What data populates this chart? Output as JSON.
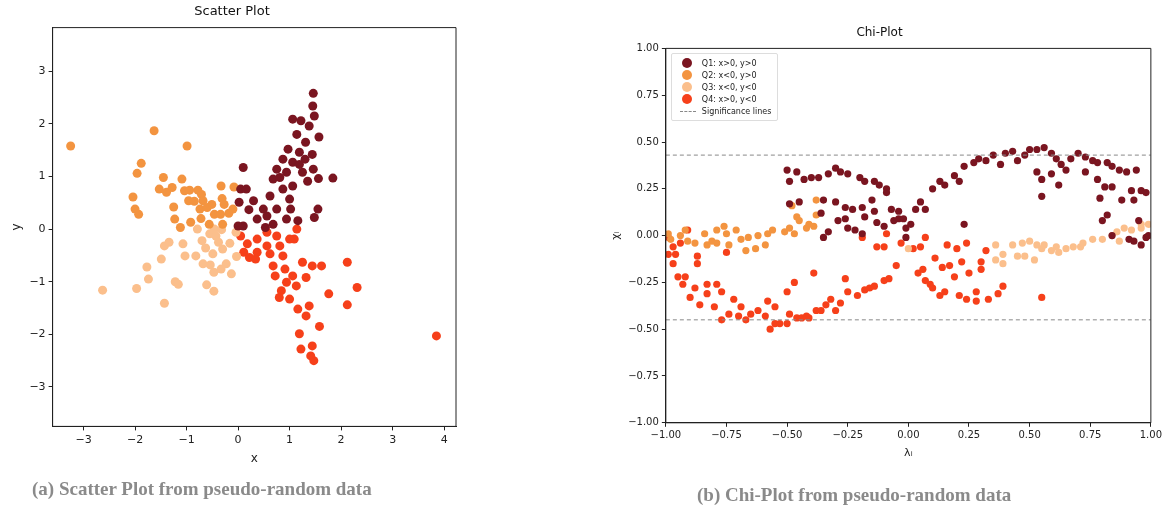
{
  "chart_data": [
    {
      "type": "scatter",
      "title": "Scatter Plot",
      "xlabel": "x",
      "ylabel": "y",
      "marker": "circle",
      "xlim": [
        -3.6,
        4.23
      ],
      "ylim": [
        -3.75,
        3.83
      ],
      "xticks": [
        {
          "value": -3,
          "label": "−3"
        },
        {
          "value": -2,
          "label": "−2"
        },
        {
          "value": -1,
          "label": "−1"
        },
        0,
        1,
        2,
        3,
        4
      ],
      "yticks": [
        {
          "value": -3,
          "label": "−3"
        },
        {
          "value": -2,
          "label": "−2"
        },
        {
          "value": -1,
          "label": "−1"
        },
        0,
        1,
        2,
        3
      ],
      "annotations": [
        "(a) Scatter Plot from pseudo-random data"
      ],
      "series": [
        {
          "color": "#7a1520",
          "x": [
            1.46,
            1.45,
            1.48,
            1.06,
            1.22,
            1.38,
            1.57,
            1.14,
            1.31,
            0.97,
            1.19,
            1.44,
            1.06,
            1.3,
            1.46,
            1.84,
            1.56,
            1.35,
            0.1,
            0.05,
            0.16,
            0.02,
            0.3,
            0.21,
            0.37,
            0.0,
            0.1,
            0.49,
            0.68,
            0.75,
            0.94,
            0.87,
            1.06,
            0.62,
            1.0,
            0.75,
            1.02,
            0.94,
            1.16,
            0.56,
            1.48,
            1.55,
            0.68,
            0.53,
            1.19,
            0.87,
            1.25,
            0.81
          ],
          "values": [
            2.58,
            2.34,
            2.15,
            2.09,
            2.06,
            1.96,
            1.75,
            1.8,
            1.65,
            1.52,
            1.46,
            1.42,
            1.27,
            1.33,
            1.14,
            0.97,
            0.96,
            0.91,
            1.17,
            0.76,
            0.76,
            0.51,
            0.54,
            0.37,
            0.19,
            0.06,
            0.06,
            0.38,
            0.95,
            1.14,
            1.08,
            0.76,
            0.82,
            0.63,
            0.57,
            0.38,
            0.38,
            0.19,
            0.16,
            0.25,
            0.22,
            0.38,
            0.09,
            0.03,
            1.23,
            1.33,
            1.08,
            0.98
          ]
        },
        {
          "color": "#f39440",
          "x": [
            -3.25,
            -1.63,
            -0.99,
            -1.88,
            -1.96,
            -1.45,
            -1.09,
            -2.04,
            -2.0,
            -1.93,
            -1.53,
            -1.39,
            -1.28,
            -1.25,
            -1.23,
            -1.12,
            -1.04,
            -0.94,
            -0.96,
            -0.85,
            -0.78,
            -0.71,
            -0.68,
            -0.74,
            -0.72,
            -0.92,
            -0.6,
            -0.51,
            -0.46,
            -0.33,
            -0.31,
            -0.27,
            -0.34,
            -0.18,
            -0.08,
            -0.1,
            -0.3,
            -0.56
          ],
          "values": [
            1.58,
            1.87,
            1.58,
            1.25,
            1.06,
            0.98,
            0.95,
            0.61,
            0.38,
            0.28,
            0.76,
            0.7,
            0.79,
            0.42,
            0.19,
            0.03,
            0.73,
            0.74,
            0.54,
            0.53,
            0.74,
            0.66,
            0.54,
            0.38,
            0.2,
            0.13,
            0.41,
            0.47,
            0.28,
            0.82,
            0.58,
            0.47,
            0.28,
            0.3,
            0.8,
            0.38,
            0.09,
            0.09
          ]
        },
        {
          "color": "#fbbf8c",
          "x": [
            -2.63,
            -1.97,
            -1.43,
            -1.77,
            -1.74,
            -1.22,
            -1.16,
            -1.49,
            -1.43,
            -1.34,
            -1.07,
            -1.03,
            -0.82,
            -0.79,
            -0.7,
            -0.68,
            -0.61,
            -0.47,
            -0.47,
            -0.54,
            -0.49,
            -0.63,
            -0.55,
            -0.43,
            -0.38,
            -0.3,
            -0.23,
            -0.33,
            -0.13,
            -0.16,
            -0.03,
            -0.04,
            -0.46,
            -0.32
          ],
          "values": [
            -1.16,
            -1.13,
            -1.41,
            -0.72,
            -0.95,
            -1.0,
            -1.05,
            -0.57,
            -0.32,
            -0.25,
            -0.28,
            -0.51,
            -0.51,
            0.0,
            -0.22,
            -0.66,
            -1.06,
            -1.18,
            -0.82,
            -0.68,
            -0.47,
            -0.36,
            -0.09,
            -0.13,
            -0.25,
            -0.38,
            -0.66,
            -0.76,
            -0.85,
            -0.27,
            -0.52,
            -0.06,
            0.0,
            -0.01
          ]
        },
        {
          "color": "#f6401a",
          "x": [
            3.85,
            2.31,
            2.14,
            2.12,
            2.12,
            1.76,
            1.62,
            1.44,
            1.58,
            1.47,
            1.41,
            1.44,
            1.22,
            1.19,
            1.32,
            1.38,
            1.16,
            1.0,
            0.84,
            0.8,
            0.94,
            1.06,
            1.32,
            1.25,
            1.09,
            1.14,
            1.0,
            0.87,
            0.68,
            0.62,
            0.56,
            0.37,
            0.37,
            0.18,
            0.05,
            0.11,
            0.22,
            0.34,
            0.56,
            0.75,
            0.81,
            0.72,
            0.91,
            1.13
          ],
          "values": [
            -2.03,
            -1.11,
            null,
            -0.63,
            -1.44,
            -1.23,
            -0.7,
            -0.7,
            -1.85,
            -2.5,
            -2.41,
            -2.22,
            -2.28,
            -1.99,
            -1.65,
            -1.46,
            -1.52,
            -1.33,
            -1.17,
            -1.3,
            -1.01,
            -0.89,
            -0.92,
            -0.63,
            -0.19,
            0.0,
            -0.19,
            -0.51,
            -0.7,
            -0.47,
            -0.32,
            -0.44,
            -0.19,
            -0.28,
            -0.13,
            -0.44,
            -0.54,
            -0.57,
            -0.06,
            -0.13,
            -0.32,
            -0.89,
            -0.76,
            -1.08
          ]
        }
      ]
    },
    {
      "type": "scatter",
      "title": "Chi-Plot",
      "xlabel": "λᵢ",
      "ylabel": "χᵢ",
      "marker": "circle",
      "legend": "top left",
      "xlim": [
        -1,
        1
      ],
      "ylim": [
        -1,
        1
      ],
      "xticks": [
        {
          "value": -1,
          "label": "−1.00"
        },
        {
          "value": -0.75,
          "label": "−0.75"
        },
        {
          "value": -0.5,
          "label": "−0.50"
        },
        {
          "value": -0.25,
          "label": "−0.25"
        },
        {
          "value": 0,
          "label": "0.00"
        },
        {
          "value": 0.25,
          "label": "0.25"
        },
        {
          "value": 0.5,
          "label": "0.50"
        },
        {
          "value": 0.75,
          "label": "0.75"
        },
        {
          "value": 1,
          "label": "1.00"
        }
      ],
      "yticks": [
        {
          "value": -1,
          "label": "−1.00"
        },
        {
          "value": -0.75,
          "label": "−0.75"
        },
        {
          "value": -0.5,
          "label": "−0.50"
        },
        {
          "value": -0.25,
          "label": "−0.25"
        },
        {
          "value": 0,
          "label": "0.00"
        },
        {
          "value": 0.25,
          "label": "0.25"
        },
        {
          "value": 0.5,
          "label": "0.50"
        },
        {
          "value": 0.75,
          "label": "0.75"
        },
        {
          "value": 1,
          "label": "1.00"
        }
      ],
      "ref_lines": [
        {
          "axis": "y",
          "value": 0.43,
          "label": "Significance lines",
          "color": "#888888",
          "line_style": "dashed"
        },
        {
          "axis": "y",
          "value": -0.45,
          "label": null,
          "color": "#888888",
          "line_style": "dashed"
        }
      ],
      "annotations": [
        "(b) Chi-Plot from pseudo-random data"
      ],
      "series": [
        {
          "name": "Q1: x>0, y>0",
          "color": "#7a1520",
          "x": [
            -0.5,
            -0.49,
            -0.46,
            -0.43,
            -0.4,
            -0.37,
            -0.33,
            -0.3,
            -0.28,
            -0.25,
            -0.2,
            -0.18,
            -0.14,
            -0.12,
            -0.09,
            -0.09,
            -0.49,
            -0.45,
            -0.35,
            -0.3,
            -0.36,
            -0.29,
            -0.26,
            -0.26,
            -0.23,
            -0.25,
            -0.22,
            -0.35,
            -0.33,
            -0.19,
            -0.19,
            -0.18,
            -0.15,
            -0.14,
            -0.13,
            -0.1,
            -0.07,
            -0.06,
            -0.04,
            -0.04,
            -0.02,
            -0.01,
            0.01,
            -0.01,
            0.03,
            0.05,
            0.07,
            0.1,
            0.13,
            0.15,
            0.19,
            0.21,
            0.23,
            0.27,
            0.29,
            0.32,
            0.23,
            0.35,
            0.38,
            0.4,
            0.43,
            0.45,
            0.48,
            0.5,
            0.53,
            0.56,
            0.59,
            0.61,
            0.63,
            0.67,
            0.7,
            0.73,
            0.76,
            0.78,
            0.82,
            0.84,
            0.87,
            0.9,
            0.94,
            0.53,
            0.55,
            0.55,
            0.59,
            0.62,
            0.65,
            0.73,
            0.78,
            0.81,
            0.84,
            0.79,
            0.82,
            0.8,
            0.88,
            0.93,
            0.92,
            0.96,
            0.98,
            0.95,
            0.84,
            0.91,
            0.93,
            0.96,
            0.98,
            0.99
          ],
          "values": [
            0.35,
            0.29,
            0.34,
            0.3,
            0.31,
            0.31,
            0.33,
            0.36,
            0.34,
            0.33,
            0.31,
            0.29,
            0.29,
            0.27,
            0.25,
            0.23,
            0.17,
            0.18,
            0.19,
            0.18,
            0.12,
            0.08,
            0.09,
            0.15,
            0.14,
            0.04,
            0.03,
            -0.01,
            0.02,
            0.01,
            0.15,
            0.1,
            0.19,
            0.13,
            0.07,
            0.05,
            0.14,
            0.08,
            0.13,
            0.09,
            0.09,
            0.04,
            0.06,
            -0.01,
            0.14,
            0.18,
            0.14,
            0.25,
            0.29,
            0.27,
            0.32,
            0.29,
            0.37,
            0.39,
            0.41,
            0.4,
            0.06,
            0.43,
            0.38,
            0.44,
            0.45,
            0.4,
            0.43,
            0.46,
            0.46,
            0.47,
            0.44,
            0.41,
            0.38,
            0.41,
            0.44,
            0.42,
            0.4,
            0.39,
            0.39,
            0.37,
            0.35,
            0.34,
            0.35,
            0.34,
            0.3,
            0.21,
            0.33,
            0.27,
            0.35,
            0.34,
            0.3,
            0.26,
            0.26,
            0.2,
            0.11,
            0.08,
            0.19,
            0.19,
            0.24,
            0.24,
            0.23,
            0.08,
            0.0,
            -0.02,
            -0.03,
            -0.05,
            -0.01,
            0.0
          ]
        },
        {
          "name": "Q2: x<0, y>0",
          "color": "#f39440",
          "x": [
            -0.99,
            -0.98,
            -0.94,
            -0.92,
            -0.91,
            -0.88,
            -0.84,
            -0.83,
            -0.81,
            -0.79,
            -0.79,
            -0.76,
            -0.75,
            -0.74,
            -0.71,
            -0.69,
            -0.67,
            -0.66,
            -0.63,
            -0.62,
            -0.59,
            -0.58,
            -0.56,
            -0.51,
            -0.49,
            -0.47,
            -0.48,
            -0.46,
            -0.45,
            -0.42,
            -0.41,
            -0.39,
            -0.38,
            -0.38
          ],
          "values": [
            0.01,
            -0.02,
            0.0,
            0.03,
            -0.03,
            -0.04,
            0.01,
            -0.05,
            -0.03,
            -0.04,
            0.03,
            0.05,
            0.01,
            -0.05,
            0.03,
            -0.02,
            -0.08,
            -0.01,
            -0.07,
            0.0,
            -0.05,
            0.01,
            0.03,
            0.02,
            0.04,
            0.01,
            0.16,
            0.1,
            0.08,
            0.04,
            0.06,
            0.05,
            0.11,
            0.19
          ]
        },
        {
          "name": "Q3: x<0, y<0",
          "color": "#fbbf8c",
          "x": [
            0.0,
            0.36,
            0.36,
            0.39,
            0.39,
            0.43,
            0.45,
            0.47,
            0.48,
            0.5,
            0.52,
            0.53,
            0.55,
            0.56,
            0.59,
            0.61,
            0.62,
            0.65,
            0.68,
            0.71,
            0.72,
            0.76,
            0.8,
            0.84,
            0.86,
            0.87,
            0.89,
            0.92,
            0.96,
            0.96,
            0.99
          ],
          "values": [
            -0.07,
            -0.05,
            -0.13,
            -0.15,
            -0.1,
            -0.05,
            -0.11,
            -0.04,
            -0.11,
            -0.03,
            -0.13,
            -0.05,
            -0.07,
            -0.05,
            -0.08,
            -0.06,
            -0.09,
            -0.07,
            -0.06,
            -0.06,
            -0.04,
            -0.02,
            -0.02,
            0.0,
            0.02,
            -0.03,
            0.04,
            0.03,
            0.04,
            0.06,
            0.06
          ]
        },
        {
          "name": "Q4: x>0, y<0",
          "color": "#f6401a",
          "x": [
            -0.99,
            -0.99,
            -0.97,
            -0.96,
            -0.94,
            -0.97,
            -0.95,
            -0.93,
            -0.92,
            -0.91,
            -0.9,
            -0.88,
            -0.87,
            -0.87,
            -0.86,
            -0.83,
            -0.83,
            -0.8,
            -0.79,
            -0.77,
            -0.77,
            -0.75,
            -0.74,
            -0.72,
            -0.7,
            -0.69,
            -0.67,
            -0.65,
            -0.62,
            -0.59,
            -0.58,
            -0.57,
            -0.55,
            -0.55,
            -0.53,
            -0.5,
            -0.5,
            -0.49,
            -0.47,
            -0.46,
            -0.44,
            -0.42,
            -0.41,
            -0.39,
            -0.38,
            -0.36,
            -0.34,
            -0.32,
            -0.3,
            -0.28,
            -0.26,
            -0.25,
            -0.21,
            -0.19,
            -0.18,
            -0.16,
            -0.14,
            -0.13,
            -0.1,
            -0.09,
            -0.08,
            -0.1,
            -0.05,
            -0.03,
            0.02,
            0.05,
            0.07,
            0.04,
            0.06,
            0.07,
            0.09,
            0.1,
            0.11,
            0.13,
            0.14,
            0.15,
            0.16,
            0.17,
            0.19,
            0.2,
            0.21,
            0.22,
            0.24,
            0.24,
            0.25,
            0.28,
            0.28,
            0.3,
            0.32,
            0.33,
            0.37,
            0.39,
            0.55,
            0.3
          ],
          "values": [
            -0.01,
            -0.1,
            -0.06,
            -0.1,
            -0.04,
            -0.15,
            -0.22,
            -0.26,
            -0.22,
            0.03,
            -0.33,
            -0.28,
            -0.11,
            -0.15,
            -0.37,
            -0.26,
            -0.31,
            -0.38,
            -0.26,
            -0.45,
            -0.3,
            -0.09,
            -0.42,
            -0.34,
            -0.43,
            -0.38,
            -0.45,
            -0.42,
            -0.4,
            -0.43,
            -0.35,
            -0.5,
            -0.47,
            -0.38,
            -0.47,
            -0.3,
            -0.47,
            -0.42,
            -0.25,
            -0.44,
            -0.44,
            -0.43,
            -0.44,
            -0.2,
            -0.4,
            -0.4,
            -0.37,
            -0.34,
            -0.4,
            -0.36,
            -0.23,
            -0.3,
            -0.32,
            -0.01,
            -0.29,
            -0.28,
            -0.27,
            -0.06,
            -0.24,
            0.01,
            -0.23,
            -0.06,
            -0.16,
            -0.04,
            -0.07,
            -0.06,
            -0.01,
            -0.2,
            -0.18,
            -0.24,
            -0.26,
            -0.28,
            -0.12,
            -0.32,
            -0.17,
            -0.3,
            -0.05,
            -0.16,
            -0.22,
            -0.07,
            -0.32,
            -0.14,
            -0.04,
            -0.34,
            -0.2,
            -0.35,
            -0.3,
            -0.14,
            -0.08,
            -0.34,
            -0.31,
            -0.27,
            -0.33,
            -0.18
          ]
        }
      ]
    }
  ]
}
